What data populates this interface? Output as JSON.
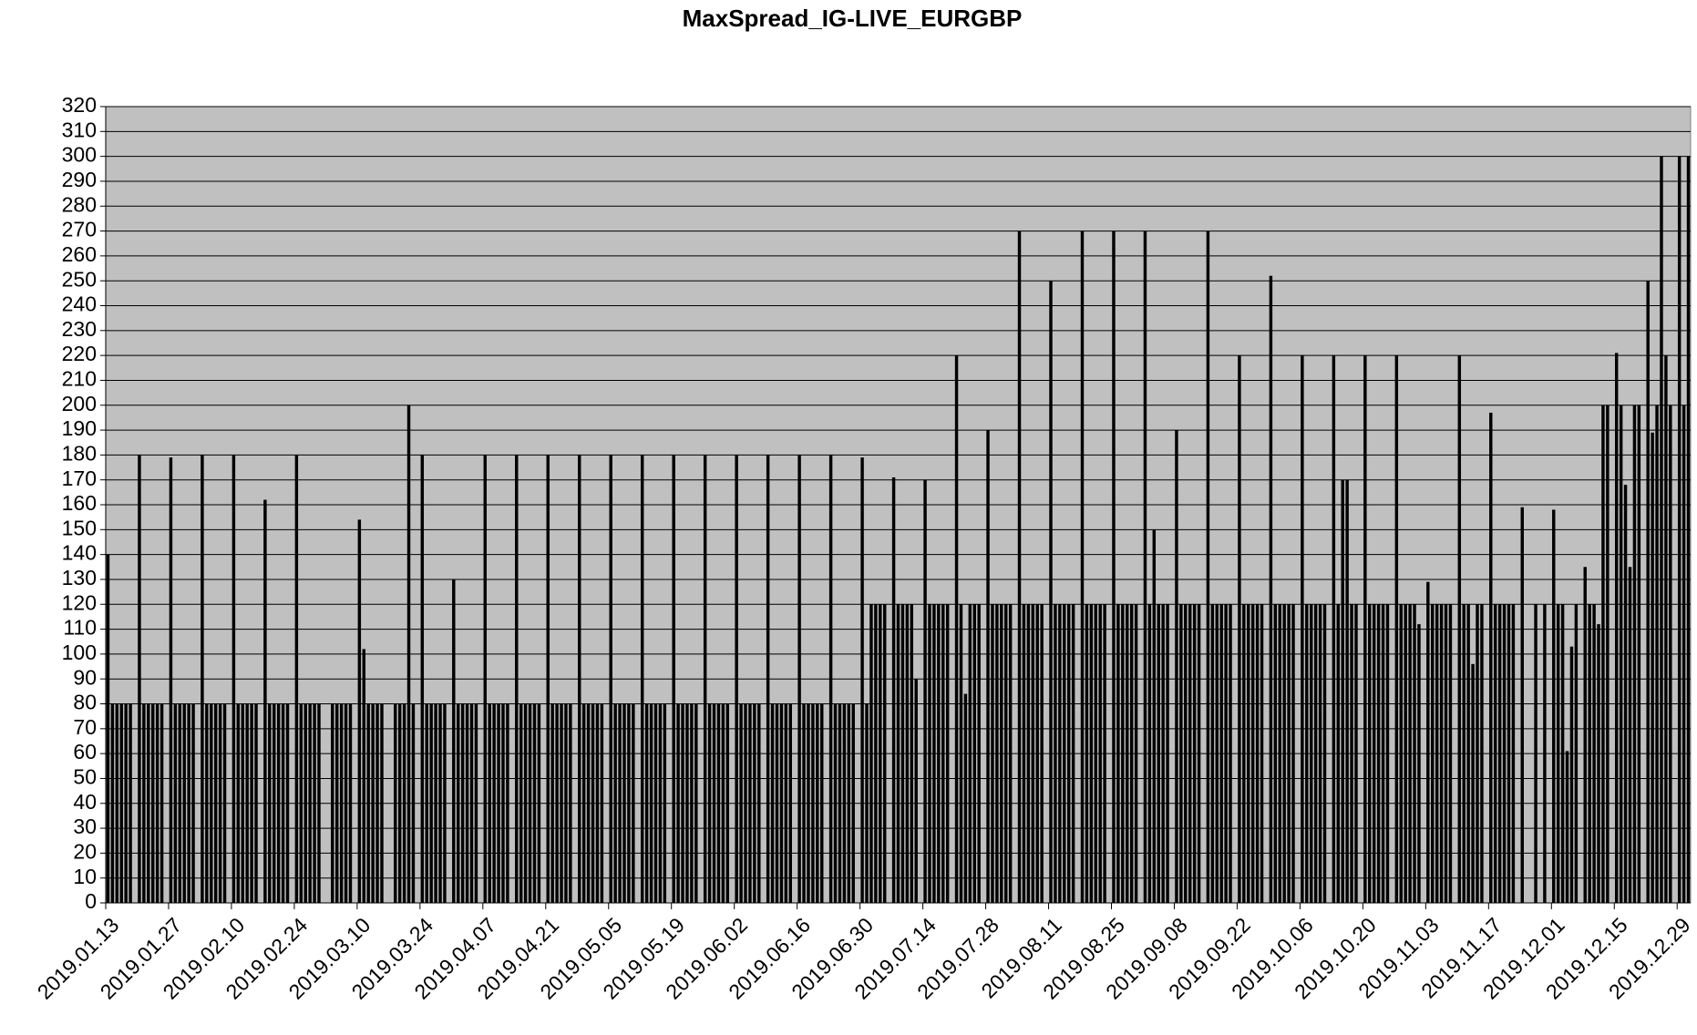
{
  "chart_data": {
    "type": "bar",
    "title": "MaxSpread_IG-LIVE_EURGBP",
    "categories": [
      "2019.01.13",
      null,
      null,
      null,
      null,
      null,
      null,
      null,
      null,
      null,
      null,
      null,
      null,
      null,
      "2019.01.27",
      null,
      null,
      null,
      null,
      null,
      null,
      null,
      null,
      null,
      null,
      null,
      null,
      null,
      "2019.02.10",
      null,
      null,
      null,
      null,
      null,
      null,
      null,
      null,
      null,
      null,
      null,
      null,
      null,
      "2019.02.24",
      null,
      null,
      null,
      null,
      null,
      null,
      null,
      null,
      null,
      null,
      null,
      null,
      null,
      "2019.03.10",
      null,
      null,
      null,
      null,
      null,
      null,
      null,
      null,
      null,
      null,
      null,
      null,
      null,
      "2019.03.24",
      null,
      null,
      null,
      null,
      null,
      null,
      null,
      null,
      null,
      null,
      null,
      null,
      null,
      "2019.04.07",
      null,
      null,
      null,
      null,
      null,
      null,
      null,
      null,
      null,
      null,
      null,
      null,
      null,
      "2019.04.21",
      null,
      null,
      null,
      null,
      null,
      null,
      null,
      null,
      null,
      null,
      null,
      null,
      null,
      "2019.05.05",
      null,
      null,
      null,
      null,
      null,
      null,
      null,
      null,
      null,
      null,
      null,
      null,
      null,
      "2019.05.19",
      null,
      null,
      null,
      null,
      null,
      null,
      null,
      null,
      null,
      null,
      null,
      null,
      null,
      "2019.06.02",
      null,
      null,
      null,
      null,
      null,
      null,
      null,
      null,
      null,
      null,
      null,
      null,
      null,
      "2019.06.16",
      null,
      null,
      null,
      null,
      null,
      null,
      null,
      null,
      null,
      null,
      null,
      null,
      null,
      "2019.06.30",
      null,
      null,
      null,
      null,
      null,
      null,
      null,
      null,
      null,
      null,
      null,
      null,
      null,
      "2019.07.14",
      null,
      null,
      null,
      null,
      null,
      null,
      null,
      null,
      null,
      null,
      null,
      null,
      null,
      "2019.07.28",
      null,
      null,
      null,
      null,
      null,
      null,
      null,
      null,
      null,
      null,
      null,
      null,
      null,
      "2019.08.11",
      null,
      null,
      null,
      null,
      null,
      null,
      null,
      null,
      null,
      null,
      null,
      null,
      null,
      "2019.08.25",
      null,
      null,
      null,
      null,
      null,
      null,
      null,
      null,
      null,
      null,
      null,
      null,
      null,
      "2019.09.08",
      null,
      null,
      null,
      null,
      null,
      null,
      null,
      null,
      null,
      null,
      null,
      null,
      null,
      "2019.09.22",
      null,
      null,
      null,
      null,
      null,
      null,
      null,
      null,
      null,
      null,
      null,
      null,
      null,
      "2019.10.06",
      null,
      null,
      null,
      null,
      null,
      null,
      null,
      null,
      null,
      null,
      null,
      null,
      null,
      "2019.10.20",
      null,
      null,
      null,
      null,
      null,
      null,
      null,
      null,
      null,
      null,
      null,
      null,
      null,
      "2019.11.03",
      null,
      null,
      null,
      null,
      null,
      null,
      null,
      null,
      null,
      null,
      null,
      null,
      null,
      "2019.11.17",
      null,
      null,
      null,
      null,
      null,
      null,
      null,
      null,
      null,
      null,
      null,
      null,
      null,
      "2019.12.01",
      null,
      null,
      null,
      null,
      null,
      null,
      null,
      null,
      null,
      null,
      null,
      null,
      null,
      "2019.12.15",
      null,
      null,
      null,
      null,
      null,
      null,
      null,
      null,
      null,
      null,
      null,
      null,
      null,
      "2019.12.29",
      null,
      null
    ],
    "values": [
      140,
      80,
      80,
      80,
      80,
      80,
      null,
      180,
      80,
      80,
      80,
      80,
      80,
      null,
      179,
      80,
      80,
      80,
      80,
      80,
      null,
      180,
      80,
      80,
      80,
      80,
      80,
      null,
      180,
      80,
      80,
      80,
      80,
      80,
      null,
      162,
      80,
      80,
      80,
      80,
      80,
      null,
      180,
      80,
      80,
      80,
      80,
      80,
      null,
      null,
      80,
      80,
      80,
      80,
      80,
      null,
      154,
      102,
      80,
      80,
      80,
      80,
      null,
      null,
      80,
      80,
      80,
      200,
      80,
      null,
      180,
      80,
      80,
      80,
      80,
      80,
      null,
      130,
      80,
      80,
      80,
      80,
      80,
      null,
      180,
      80,
      80,
      80,
      80,
      80,
      null,
      180,
      80,
      80,
      80,
      80,
      80,
      null,
      180,
      80,
      80,
      80,
      80,
      80,
      null,
      180,
      80,
      80,
      80,
      80,
      80,
      null,
      180,
      80,
      80,
      80,
      80,
      80,
      null,
      180,
      80,
      80,
      80,
      80,
      80,
      null,
      180,
      80,
      80,
      80,
      80,
      80,
      null,
      180,
      80,
      80,
      80,
      80,
      80,
      null,
      180,
      80,
      80,
      80,
      80,
      80,
      null,
      180,
      80,
      80,
      80,
      80,
      80,
      null,
      180,
      80,
      80,
      80,
      80,
      80,
      null,
      180,
      80,
      80,
      80,
      80,
      80,
      null,
      179,
      80,
      120,
      120,
      120,
      120,
      null,
      171,
      120,
      120,
      120,
      120,
      90,
      null,
      170,
      120,
      120,
      120,
      120,
      120,
      null,
      220,
      120,
      84,
      120,
      120,
      120,
      null,
      190,
      120,
      120,
      120,
      120,
      120,
      null,
      270,
      120,
      120,
      120,
      120,
      120,
      null,
      250,
      120,
      120,
      120,
      120,
      120,
      null,
      270,
      120,
      120,
      120,
      120,
      120,
      null,
      270,
      120,
      120,
      120,
      120,
      120,
      null,
      270,
      120,
      150,
      120,
      120,
      120,
      null,
      190,
      120,
      120,
      120,
      120,
      120,
      null,
      270,
      120,
      120,
      120,
      120,
      120,
      null,
      220,
      120,
      120,
      120,
      120,
      120,
      null,
      252,
      120,
      120,
      120,
      120,
      120,
      null,
      220,
      120,
      120,
      120,
      120,
      120,
      null,
      220,
      120,
      170,
      170,
      120,
      120,
      null,
      220,
      120,
      120,
      120,
      120,
      120,
      null,
      220,
      120,
      120,
      120,
      120,
      112,
      null,
      129,
      120,
      120,
      120,
      120,
      120,
      null,
      220,
      120,
      120,
      96,
      120,
      120,
      null,
      197,
      120,
      120,
      120,
      120,
      120,
      null,
      159,
      null,
      null,
      120,
      null,
      120,
      null,
      158,
      120,
      120,
      61,
      103,
      120,
      null,
      135,
      120,
      120,
      112,
      200,
      200,
      null,
      221,
      200,
      168,
      135,
      200,
      200,
      null,
      250,
      189,
      200,
      300,
      220,
      200,
      null,
      300,
      200,
      300
    ],
    "color": "#000000",
    "plot_background": "#c0c0c0",
    "ylim": [
      0,
      320
    ],
    "yticks": [
      0,
      10,
      20,
      30,
      40,
      50,
      60,
      70,
      80,
      90,
      100,
      110,
      120,
      130,
      140,
      150,
      160,
      170,
      180,
      190,
      200,
      210,
      220,
      230,
      240,
      250,
      260,
      270,
      280,
      290,
      300,
      310,
      320
    ],
    "grid": true
  }
}
